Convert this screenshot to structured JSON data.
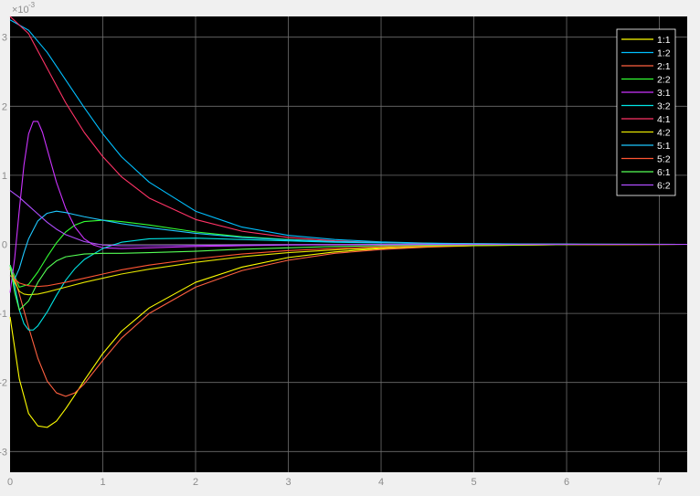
{
  "chart_data": {
    "type": "line",
    "title": "",
    "xlabel": "",
    "ylabel": "",
    "exponent_label": "×10",
    "exponent_power": "-3",
    "xlim": [
      0,
      7.3
    ],
    "ylim": [
      -3.3,
      3.3
    ],
    "xticks": [
      0,
      1,
      2,
      3,
      4,
      5,
      6,
      7
    ],
    "xtick_labels": [
      "0",
      "1",
      "2",
      "3",
      "4",
      "5",
      "6",
      "7"
    ],
    "yticks": [
      -3,
      -2,
      -1,
      0,
      1,
      2,
      3
    ],
    "ytick_labels": [
      "-3",
      "-2",
      "-1",
      "0",
      "1",
      "2",
      "3"
    ],
    "grid": true,
    "legend_placement": "top-right",
    "colors": {
      "figure_background": "#f0f0f0",
      "axes_background": "#000000",
      "grid": "#6e6e6e",
      "tick_text": "#8c8c8c",
      "legend_text": "#ffffff",
      "legend_border": "#ffffff"
    },
    "series": [
      {
        "name": "1:1",
        "color": "#ffff00",
        "x": [
          0,
          0.05,
          0.1,
          0.2,
          0.3,
          0.4,
          0.5,
          0.6,
          0.7,
          0.8,
          1.0,
          1.2,
          1.5,
          2.0,
          2.5,
          3.0,
          3.5,
          4.0,
          4.5,
          5.0,
          6.0,
          7.3
        ],
        "y": [
          -1.05,
          -1.5,
          -1.95,
          -2.45,
          -2.63,
          -2.65,
          -2.56,
          -2.38,
          -2.18,
          -1.97,
          -1.58,
          -1.26,
          -0.92,
          -0.55,
          -0.33,
          -0.19,
          -0.11,
          -0.06,
          -0.03,
          -0.015,
          -0.004,
          0
        ]
      },
      {
        "name": "1:2",
        "color": "#00bfff",
        "x": [
          0,
          0.2,
          0.4,
          0.6,
          0.8,
          1.0,
          1.2,
          1.5,
          2.0,
          2.5,
          3.0,
          3.5,
          4.0,
          4.5,
          5.0,
          6.0,
          7.3
        ],
        "y": [
          3.25,
          3.1,
          2.78,
          2.38,
          1.98,
          1.6,
          1.27,
          0.9,
          0.48,
          0.25,
          0.13,
          0.07,
          0.035,
          0.018,
          0.009,
          0.002,
          0
        ]
      },
      {
        "name": "2:1",
        "color": "#ff6040",
        "x": [
          0,
          0.05,
          0.1,
          0.2,
          0.3,
          0.4,
          0.5,
          0.6,
          0.7,
          0.8,
          1.0,
          1.2,
          1.5,
          2.0,
          2.5,
          3.0,
          3.5,
          4.0,
          4.5,
          5.0,
          6.0,
          7.3
        ],
        "y": [
          -0.35,
          -0.5,
          -0.72,
          -1.2,
          -1.65,
          -1.98,
          -2.15,
          -2.2,
          -2.15,
          -2.02,
          -1.68,
          -1.36,
          -1.0,
          -0.62,
          -0.38,
          -0.23,
          -0.13,
          -0.075,
          -0.04,
          -0.02,
          -0.005,
          0
        ]
      },
      {
        "name": "2:2",
        "color": "#33ff33",
        "x": [
          0,
          0.1,
          0.2,
          0.3,
          0.4,
          0.5,
          0.6,
          0.7,
          0.8,
          1.0,
          1.2,
          1.5,
          2.0,
          2.5,
          3.0,
          3.5,
          4.0,
          4.5,
          5.0,
          6.0,
          7.3
        ],
        "y": [
          -0.3,
          -0.62,
          -0.58,
          -0.4,
          -0.18,
          0.02,
          0.18,
          0.28,
          0.33,
          0.35,
          0.33,
          0.28,
          0.18,
          0.11,
          0.07,
          0.04,
          0.025,
          0.014,
          0.008,
          0.002,
          0
        ]
      },
      {
        "name": "3:1",
        "color": "#cc33ff",
        "x": [
          0,
          0.05,
          0.1,
          0.15,
          0.2,
          0.25,
          0.3,
          0.35,
          0.4,
          0.5,
          0.6,
          0.7,
          0.8,
          0.9,
          1.0,
          1.2,
          1.5,
          2.0,
          2.5,
          3.0,
          4.0,
          5.0,
          6.0,
          7.3
        ],
        "y": [
          -0.7,
          -0.2,
          0.5,
          1.15,
          1.6,
          1.78,
          1.78,
          1.62,
          1.38,
          0.9,
          0.52,
          0.25,
          0.08,
          -0.01,
          -0.05,
          -0.06,
          -0.05,
          -0.03,
          -0.02,
          -0.01,
          -0.004,
          -0.001,
          0,
          0
        ]
      },
      {
        "name": "3:2",
        "color": "#00e5e5",
        "x": [
          0,
          0.05,
          0.1,
          0.15,
          0.2,
          0.25,
          0.3,
          0.4,
          0.5,
          0.6,
          0.7,
          0.8,
          1.0,
          1.2,
          1.5,
          2.0,
          2.5,
          3.0,
          3.5,
          4.0,
          5.0,
          6.0,
          7.3
        ],
        "y": [
          -0.3,
          -0.6,
          -0.95,
          -1.15,
          -1.24,
          -1.24,
          -1.18,
          -0.98,
          -0.74,
          -0.52,
          -0.35,
          -0.22,
          -0.06,
          0.03,
          0.08,
          0.09,
          0.07,
          0.05,
          0.03,
          0.02,
          0.008,
          0.002,
          0
        ]
      },
      {
        "name": "4:1",
        "color": "#ff3366",
        "x": [
          0,
          0.2,
          0.4,
          0.6,
          0.8,
          1.0,
          1.2,
          1.5,
          2.0,
          2.5,
          3.0,
          3.5,
          4.0,
          4.5,
          5.0,
          6.0,
          7.3
        ],
        "y": [
          3.3,
          3.05,
          2.55,
          2.05,
          1.62,
          1.27,
          0.98,
          0.67,
          0.36,
          0.19,
          0.1,
          0.05,
          0.026,
          0.013,
          0.007,
          0.002,
          0
        ]
      },
      {
        "name": "4:2",
        "color": "#e5e500",
        "x": [
          0,
          0.05,
          0.1,
          0.15,
          0.2,
          0.3,
          0.4,
          0.6,
          0.8,
          1.0,
          1.2,
          1.5,
          2.0,
          2.5,
          3.0,
          3.5,
          4.0,
          4.5,
          5.0,
          6.0,
          7.3
        ],
        "y": [
          -0.35,
          -0.55,
          -0.68,
          -0.72,
          -0.73,
          -0.72,
          -0.69,
          -0.62,
          -0.55,
          -0.49,
          -0.43,
          -0.36,
          -0.26,
          -0.18,
          -0.12,
          -0.08,
          -0.05,
          -0.03,
          -0.02,
          -0.005,
          0
        ]
      },
      {
        "name": "5:1",
        "color": "#1ec8ff",
        "x": [
          0,
          0.05,
          0.1,
          0.15,
          0.2,
          0.3,
          0.4,
          0.5,
          0.6,
          0.7,
          0.8,
          1.0,
          1.2,
          1.5,
          2.0,
          2.5,
          3.0,
          3.5,
          4.0,
          4.5,
          5.0,
          6.0,
          7.3
        ],
        "y": [
          -0.45,
          -0.5,
          -0.35,
          -0.12,
          0.08,
          0.34,
          0.45,
          0.48,
          0.46,
          0.43,
          0.4,
          0.35,
          0.3,
          0.24,
          0.16,
          0.1,
          0.065,
          0.04,
          0.025,
          0.015,
          0.008,
          0.002,
          0
        ]
      },
      {
        "name": "5:2",
        "color": "#ff5533",
        "x": [
          0,
          0.1,
          0.2,
          0.3,
          0.4,
          0.6,
          0.8,
          1.0,
          1.2,
          1.5,
          2.0,
          2.5,
          3.0,
          3.5,
          4.0,
          4.5,
          5.0,
          6.0,
          7.3
        ],
        "y": [
          -0.45,
          -0.56,
          -0.6,
          -0.61,
          -0.6,
          -0.55,
          -0.49,
          -0.43,
          -0.37,
          -0.3,
          -0.21,
          -0.14,
          -0.09,
          -0.06,
          -0.035,
          -0.02,
          -0.01,
          -0.003,
          0
        ]
      },
      {
        "name": "6:1",
        "color": "#55ff55",
        "x": [
          0,
          0.05,
          0.1,
          0.2,
          0.3,
          0.4,
          0.5,
          0.6,
          0.8,
          1.0,
          1.2,
          1.5,
          2.0,
          2.5,
          3.0,
          3.5,
          4.0,
          5.0,
          6.0,
          7.3
        ],
        "y": [
          -0.3,
          -0.7,
          -0.95,
          -0.82,
          -0.55,
          -0.35,
          -0.24,
          -0.18,
          -0.14,
          -0.13,
          -0.13,
          -0.12,
          -0.1,
          -0.07,
          -0.05,
          -0.03,
          -0.02,
          -0.007,
          -0.002,
          0
        ]
      },
      {
        "name": "6:2",
        "color": "#b04dff",
        "x": [
          0,
          0.1,
          0.2,
          0.3,
          0.4,
          0.5,
          0.6,
          0.8,
          1.0,
          1.2,
          1.5,
          2.0,
          3.0,
          4.0,
          5.0,
          6.0,
          7.3
        ],
        "y": [
          0.78,
          0.68,
          0.56,
          0.44,
          0.32,
          0.22,
          0.14,
          0.04,
          -0.01,
          -0.02,
          -0.02,
          -0.015,
          -0.005,
          -0.002,
          0,
          0,
          0
        ]
      }
    ]
  }
}
